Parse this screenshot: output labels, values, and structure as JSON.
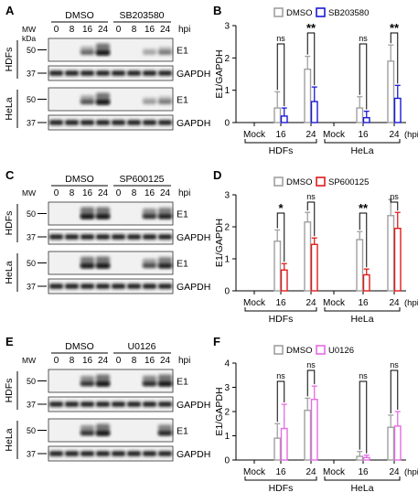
{
  "blots": [
    {
      "panel": "A",
      "mw_label": "MW\nkDa",
      "treatments": [
        "DMSO",
        "SB203580"
      ],
      "hpi_label": "hpi",
      "timepoints": [
        "0",
        "8",
        "16",
        "24",
        "0",
        "8",
        "16",
        "24"
      ],
      "cells": [
        {
          "name": "HDFs",
          "rows": [
            {
              "mw": "50",
              "protein": "E1"
            },
            {
              "mw": "37",
              "protein": "GAPDH"
            }
          ]
        },
        {
          "name": "HeLa",
          "rows": [
            {
              "mw": "50",
              "protein": "E1"
            },
            {
              "mw": "37",
              "protein": "GAPDH"
            }
          ]
        }
      ],
      "e1_intensity": [
        [
          0,
          0,
          0.45,
          1.0,
          0,
          0,
          0.15,
          0.35
        ],
        [
          0,
          0,
          0.55,
          1.0,
          0,
          0,
          0.2,
          0.35
        ]
      ]
    },
    {
      "panel": "C",
      "mw_label": "MW",
      "treatments": [
        "DMSO",
        "SP600125"
      ],
      "hpi_label": "hpi",
      "timepoints": [
        "0",
        "8",
        "16",
        "24",
        "0",
        "8",
        "16",
        "24"
      ],
      "cells": [
        {
          "name": "HDFs",
          "rows": [
            {
              "mw": "50",
              "protein": "E1"
            },
            {
              "mw": "37",
              "protein": "GAPDH"
            }
          ]
        },
        {
          "name": "HeLa",
          "rows": [
            {
              "mw": "50",
              "protein": "E1"
            },
            {
              "mw": "37",
              "protein": "GAPDH"
            }
          ]
        }
      ],
      "e1_intensity": [
        [
          0,
          0,
          1.0,
          1.0,
          0,
          0,
          0.75,
          0.9
        ],
        [
          0,
          0,
          0.95,
          1.0,
          0,
          0,
          0.6,
          0.9
        ]
      ]
    },
    {
      "panel": "E",
      "mw_label": "MW",
      "treatments": [
        "DMSO",
        "U0126"
      ],
      "hpi_label": "hpi",
      "timepoints": [
        "0",
        "8",
        "16",
        "24",
        "0",
        "8",
        "16",
        "24"
      ],
      "cells": [
        {
          "name": "HDFs",
          "rows": [
            {
              "mw": "50",
              "protein": "E1"
            },
            {
              "mw": "37",
              "protein": "GAPDH"
            }
          ]
        },
        {
          "name": "HeLa",
          "rows": [
            {
              "mw": "50",
              "protein": "E1"
            },
            {
              "mw": "37",
              "protein": "GAPDH"
            }
          ]
        }
      ],
      "e1_intensity": [
        [
          0,
          0,
          0.75,
          1.0,
          0,
          0,
          0.8,
          1.0
        ],
        [
          0,
          0,
          0.75,
          1.0,
          0,
          0,
          0,
          0.85
        ]
      ]
    }
  ],
  "chart_data": [
    {
      "panel": "B",
      "type": "bar",
      "ylabel": "E1/GAPDH",
      "xlabel": "(hpi)",
      "ylim": [
        0,
        3
      ],
      "yticks": [
        "0",
        "1",
        "2",
        "3"
      ],
      "categories": [
        "Mock",
        "16",
        "24",
        "Mock",
        "16",
        "24"
      ],
      "groups": [
        "HDFs",
        "HeLa"
      ],
      "series": [
        {
          "name": "DMSO",
          "color": "#a0a0a0",
          "values": [
            0,
            0.45,
            1.65,
            0,
            0.45,
            1.9
          ],
          "errors": [
            0,
            0.5,
            0.4,
            0,
            0.35,
            0.5
          ]
        },
        {
          "name": "SB203580",
          "color": "#1a1ad6",
          "values": [
            0,
            0.2,
            0.65,
            0,
            0.15,
            0.75
          ],
          "errors": [
            0,
            0.25,
            0.45,
            0,
            0.2,
            0.4
          ]
        }
      ],
      "significance": [
        {
          "category": "16",
          "group": "HDFs",
          "label": "ns"
        },
        {
          "category": "24",
          "group": "HDFs",
          "label": "**"
        },
        {
          "category": "16",
          "group": "HeLa",
          "label": "ns"
        },
        {
          "category": "24",
          "group": "HeLa",
          "label": "**"
        }
      ]
    },
    {
      "panel": "D",
      "type": "bar",
      "ylabel": "E1/GAPDH",
      "xlabel": "(hpi)",
      "ylim": [
        0,
        3
      ],
      "yticks": [
        "0",
        "1",
        "2",
        "3"
      ],
      "categories": [
        "Mock",
        "16",
        "24",
        "Mock",
        "16",
        "24"
      ],
      "groups": [
        "HDFs",
        "HeLa"
      ],
      "series": [
        {
          "name": "DMSO",
          "color": "#a0a0a0",
          "values": [
            0,
            1.55,
            2.15,
            0,
            1.6,
            2.35
          ],
          "errors": [
            0,
            0.35,
            0.3,
            0,
            0.25,
            0.5
          ]
        },
        {
          "name": "SP600125",
          "color": "#e01b1b",
          "values": [
            0,
            0.65,
            1.45,
            0,
            0.5,
            1.95
          ],
          "errors": [
            0,
            0.2,
            0.2,
            0,
            0.18,
            0.5
          ]
        }
      ],
      "significance": [
        {
          "category": "16",
          "group": "HDFs",
          "label": "*"
        },
        {
          "category": "24",
          "group": "HDFs",
          "label": "ns"
        },
        {
          "category": "16",
          "group": "HeLa",
          "label": "**"
        },
        {
          "category": "24",
          "group": "HeLa",
          "label": "ns"
        }
      ]
    },
    {
      "panel": "F",
      "type": "bar",
      "ylabel": "E1/GAPDH",
      "xlabel": "(hpi)",
      "ylim": [
        0,
        4
      ],
      "yticks": [
        "0",
        "1",
        "2",
        "3",
        "4"
      ],
      "categories": [
        "Mock",
        "16",
        "24",
        "Mock",
        "16",
        "24"
      ],
      "groups": [
        "HDFs",
        "HeLa"
      ],
      "series": [
        {
          "name": "DMSO",
          "color": "#a0a0a0",
          "values": [
            0,
            0.9,
            2.05,
            0,
            0.15,
            1.35
          ],
          "errors": [
            0,
            0.6,
            0.5,
            0,
            0.2,
            0.5
          ]
        },
        {
          "name": "U0126",
          "color": "#e46be4",
          "values": [
            0,
            1.3,
            2.5,
            0,
            0.1,
            1.4
          ],
          "errors": [
            0,
            1.0,
            0.55,
            0,
            0.1,
            0.6
          ]
        }
      ],
      "significance": [
        {
          "category": "16",
          "group": "HDFs",
          "label": "ns"
        },
        {
          "category": "24",
          "group": "HDFs",
          "label": "ns"
        },
        {
          "category": "16",
          "group": "HeLa",
          "label": "ns"
        },
        {
          "category": "24",
          "group": "HeLa",
          "label": "ns"
        }
      ]
    }
  ]
}
